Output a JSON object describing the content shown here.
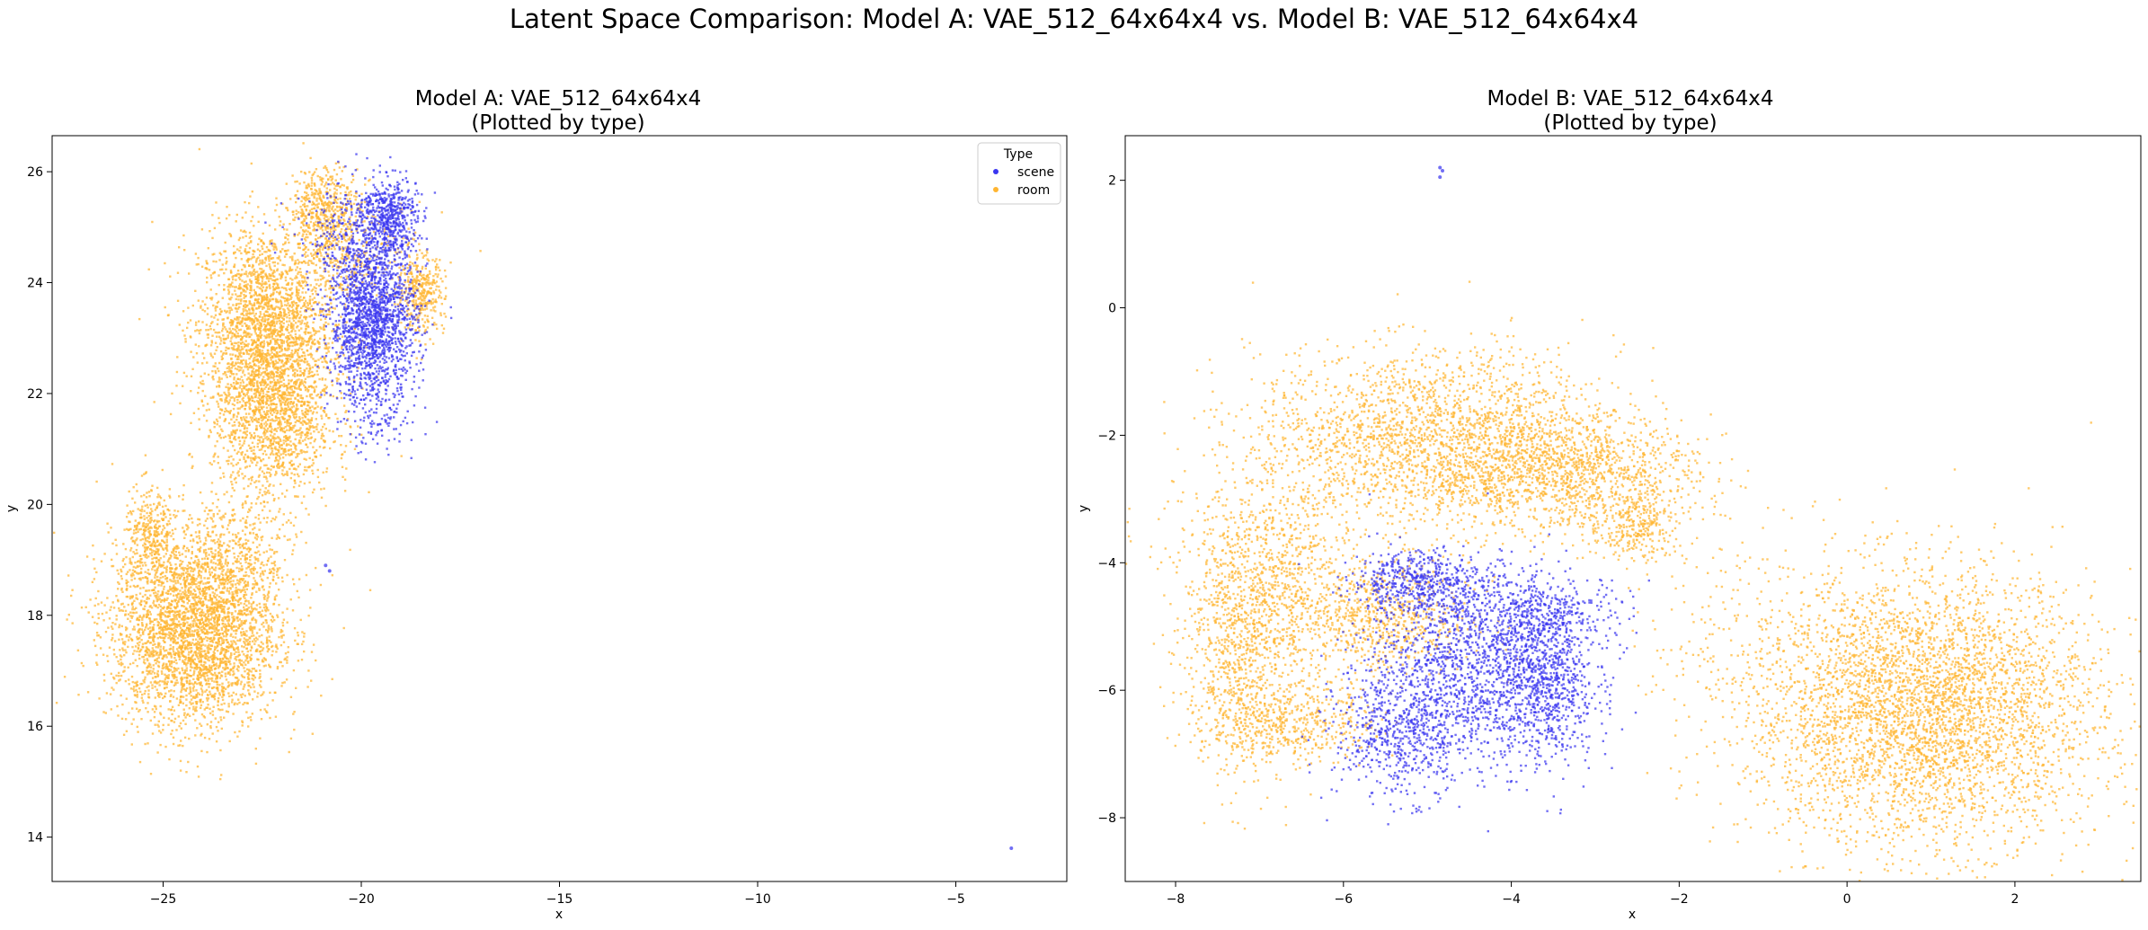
{
  "figure": {
    "suptitle": "Latent Space Comparison: Model A: VAE_512_64x64x4 vs. Model B: VAE_512_64x64x4"
  },
  "colors": {
    "scene": "#3a36f0",
    "room": "#ffb531"
  },
  "chart_data": [
    {
      "type": "scatter",
      "title": "Model A: VAE_512_64x64x4",
      "subtitle": "(Plotted by type)",
      "xlabel": "x",
      "ylabel": "y",
      "xlim": [
        -27.8,
        -2.2
      ],
      "ylim": [
        13.2,
        26.65
      ],
      "xticks": [
        -25,
        -20,
        -15,
        -10,
        -5
      ],
      "yticks": [
        14,
        16,
        18,
        20,
        22,
        24,
        26
      ],
      "legend": {
        "title": "Type",
        "placement": "upper-right",
        "entries": [
          "scene",
          "room"
        ]
      },
      "series": [
        {
          "name": "room",
          "color": "#ffb531",
          "clusters": [
            {
              "cx": -22.4,
              "cy": 23.2,
              "sx": 0.85,
              "sy": 0.9,
              "n": 2200
            },
            {
              "cx": -22.2,
              "cy": 21.6,
              "sx": 0.75,
              "sy": 0.8,
              "n": 1400
            },
            {
              "cx": -20.9,
              "cy": 25.3,
              "sx": 0.45,
              "sy": 0.4,
              "n": 500
            },
            {
              "cx": -18.5,
              "cy": 23.8,
              "sx": 0.3,
              "sy": 0.35,
              "n": 350
            },
            {
              "cx": -20.2,
              "cy": 24.4,
              "sx": 0.9,
              "sy": 0.5,
              "n": 300
            },
            {
              "cx": -24.2,
              "cy": 17.7,
              "sx": 1.05,
              "sy": 0.85,
              "n": 3200
            },
            {
              "cx": -25.3,
              "cy": 19.4,
              "sx": 0.35,
              "sy": 0.45,
              "n": 350
            },
            {
              "cx": -23.2,
              "cy": 19.0,
              "sx": 0.8,
              "sy": 0.6,
              "n": 400
            }
          ]
        },
        {
          "name": "scene",
          "color": "#3a36f0",
          "clusters": [
            {
              "cx": -19.7,
              "cy": 23.3,
              "sx": 0.55,
              "sy": 0.75,
              "n": 1800
            },
            {
              "cx": -19.3,
              "cy": 25.2,
              "sx": 0.35,
              "sy": 0.35,
              "n": 500
            },
            {
              "cx": -20.3,
              "cy": 24.9,
              "sx": 0.7,
              "sy": 0.5,
              "n": 250
            },
            {
              "cx": -19.6,
              "cy": 21.4,
              "sx": 0.55,
              "sy": 0.25,
              "n": 60
            }
          ],
          "points": [
            [
              -3.6,
              13.8
            ],
            [
              -20.8,
              18.8
            ],
            [
              -20.9,
              18.9
            ]
          ]
        }
      ]
    },
    {
      "type": "scatter",
      "title": "Model B: VAE_512_64x64x4",
      "subtitle": "(Plotted by type)",
      "xlabel": "x",
      "ylabel": "y",
      "xlim": [
        -8.6,
        3.5
      ],
      "ylim": [
        -9.0,
        2.7
      ],
      "xticks": [
        -8,
        -6,
        -4,
        -2,
        0,
        2
      ],
      "yticks": [
        -8,
        -6,
        -4,
        -2,
        0,
        2
      ],
      "series": [
        {
          "name": "room",
          "color": "#ffb531",
          "clusters": [
            {
              "cx": -4.9,
              "cy": -2.1,
              "sx": 1.1,
              "sy": 0.7,
              "n": 2400
            },
            {
              "cx": -3.3,
              "cy": -2.6,
              "sx": 0.75,
              "sy": 0.45,
              "n": 1000
            },
            {
              "cx": -2.5,
              "cy": -3.4,
              "sx": 0.3,
              "sy": 0.3,
              "n": 300
            },
            {
              "cx": -6.9,
              "cy": -4.2,
              "sx": 0.55,
              "sy": 0.7,
              "n": 800
            },
            {
              "cx": -7.2,
              "cy": -5.6,
              "sx": 0.35,
              "sy": 0.9,
              "n": 700
            },
            {
              "cx": -6.6,
              "cy": -6.5,
              "sx": 0.5,
              "sy": 0.3,
              "n": 450
            },
            {
              "cx": -5.6,
              "cy": -4.9,
              "sx": 0.55,
              "sy": 0.45,
              "n": 700
            },
            {
              "cx": 0.9,
              "cy": -6.3,
              "sx": 1.05,
              "sy": 1.05,
              "n": 4200
            },
            {
              "cx": -1.4,
              "cy": -5.0,
              "sx": 0.5,
              "sy": 0.9,
              "n": 120
            }
          ]
        },
        {
          "name": "scene",
          "color": "#3a36f0",
          "clusters": [
            {
              "cx": -4.5,
              "cy": -5.6,
              "sx": 0.6,
              "sy": 0.75,
              "n": 1300
            },
            {
              "cx": -3.6,
              "cy": -5.9,
              "sx": 0.3,
              "sy": 0.65,
              "n": 700
            },
            {
              "cx": -5.3,
              "cy": -6.7,
              "sx": 0.4,
              "sy": 0.5,
              "n": 600
            },
            {
              "cx": -5.1,
              "cy": -4.3,
              "sx": 0.4,
              "sy": 0.25,
              "n": 500
            },
            {
              "cx": -3.6,
              "cy": -4.8,
              "sx": 0.5,
              "sy": 0.3,
              "n": 400
            }
          ],
          "points": [
            [
              -4.85,
              2.2
            ],
            [
              -4.85,
              2.05
            ],
            [
              -4.82,
              2.15
            ]
          ]
        }
      ]
    }
  ]
}
